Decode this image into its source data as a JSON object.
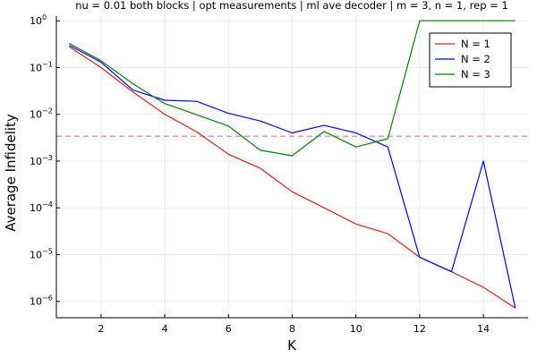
{
  "chart_data": {
    "type": "line",
    "title": "nu = 0.01 both blocks | opt measurements | ml ave decoder | m = 3, n = 1, rep = 1",
    "xlabel": "K",
    "ylabel": "Average Infidelity",
    "xlim": [
      0.6,
      15.4
    ],
    "ylim_log10": [
      -6.35,
      0.1
    ],
    "yscale": "log",
    "grid": true,
    "legend_position": "top-right",
    "x_ticks": [
      2,
      4,
      6,
      8,
      10,
      12,
      14
    ],
    "x_tick_labels": [
      "2",
      "4",
      "6",
      "8",
      "10",
      "12",
      "14"
    ],
    "y_ticks": [
      {
        "exp": -6,
        "base": "10",
        "power": "−6"
      },
      {
        "exp": -5,
        "base": "10",
        "power": "−5"
      },
      {
        "exp": -4,
        "base": "10",
        "power": "−4"
      },
      {
        "exp": -3,
        "base": "10",
        "power": "−3"
      },
      {
        "exp": -2,
        "base": "10",
        "power": "−2"
      },
      {
        "exp": -1,
        "base": "10",
        "power": "−1"
      },
      {
        "exp": 0,
        "base": "10",
        "power": "0"
      }
    ],
    "x": [
      1,
      2,
      3,
      4,
      5,
      6,
      7,
      8,
      9,
      10,
      11,
      12,
      13,
      14,
      15
    ],
    "series": [
      {
        "name": "N = 1",
        "color": "#e31a1c",
        "values": [
          0.28,
          0.1,
          0.03,
          0.01,
          0.0042,
          0.0014,
          0.0007,
          0.00022,
          0.0001,
          4.5e-05,
          2.8e-05,
          8.8e-06,
          4.3e-06,
          2e-06,
          7.2e-07
        ]
      },
      {
        "name": "N = 2",
        "color": "#0000ff",
        "values": [
          0.3,
          0.13,
          0.033,
          0.02,
          0.019,
          0.0105,
          0.0072,
          0.004,
          0.0058,
          0.004,
          0.002,
          8.8e-06,
          4.3e-06,
          0.001,
          7.2e-07
        ]
      },
      {
        "name": "N = 3",
        "color": "#008000",
        "values": [
          0.33,
          0.14,
          0.045,
          0.017,
          0.0098,
          0.0056,
          0.0017,
          0.0013,
          0.0043,
          0.002,
          0.003,
          1.0,
          1.0,
          1.0,
          1.0
        ]
      }
    ],
    "hline": {
      "value": 0.0034,
      "color": "#c875c4",
      "style": "dashed"
    }
  }
}
